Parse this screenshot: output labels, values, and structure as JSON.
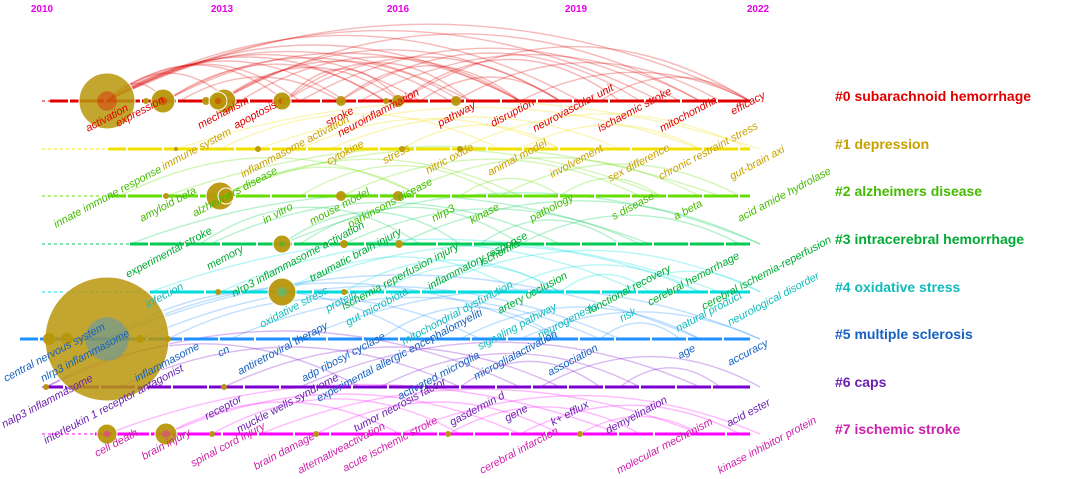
{
  "years": [
    "2010",
    "2013",
    "2016",
    "2019",
    "2022"
  ],
  "clusters": [
    {
      "label": "#0 subarachnoid hemorrhage",
      "color": "#e00000",
      "keywords": [
        "activation",
        "expression",
        "mechanism",
        "apoptosis",
        "stroke",
        "neuroinflammation",
        "pathway",
        "disruption",
        "neurovascular unit",
        "ischaemic stroke",
        "mitochondria",
        "efficacy"
      ]
    },
    {
      "label": "#1 depression",
      "color": "#c8a000",
      "keywords": [
        "immune system",
        "inflammasome activation",
        "cytokine",
        "stress",
        "nitric oxide",
        "animal model",
        "involvement",
        "sex difference",
        "chronic restraint stress",
        "gut-brain axi"
      ]
    },
    {
      "label": "#2 alzheimers disease",
      "color": "#44bb00",
      "keywords": [
        "innate immune response",
        "amyloid beta",
        "alzheimers disease",
        "in vitro",
        "mouse model",
        "parkinsons disease",
        "nlrp3",
        "kinase",
        "pathology",
        "s disease",
        "a beta",
        "acid amide hydrolase"
      ]
    },
    {
      "label": "#3 intracerebral hemorrhage",
      "color": "#00aa33",
      "keywords": [
        "experimental stroke",
        "memory",
        "nlrp3 inflammasome activation",
        "traumatic brain injury",
        "ischemia reperfusion injury",
        "inflammatory response",
        "ischemia",
        "artery occlusion",
        "functional recovery",
        "cerebral hemorrhage",
        "cerebral ischemia-reperfusion"
      ]
    },
    {
      "label": "#4 oxidative stress",
      "color": "#11bbbb",
      "keywords": [
        "infection",
        "oxidative stress",
        "protein",
        "gut microbiota",
        "mitochondrial dysfunction",
        "signaling pathway",
        "neurogenesis",
        "risk",
        "natural product",
        "neurological disorder"
      ]
    },
    {
      "label": "#5 multiple sclerosis",
      "color": "#1560c0",
      "keywords": [
        "central nervous system",
        "nlrp3 inflammasome",
        "inflammasome",
        "cn",
        "antiretroviral therapy",
        "adp ribosyl cyclase",
        "experimental allergic encephalomyeliti",
        "activated microglia",
        "microglialactivation",
        "association",
        "age",
        "accuracy"
      ]
    },
    {
      "label": "#6 caps",
      "color": "#6a20b0",
      "keywords": [
        "nalp3 inflammasome",
        "interleukin 1 receptor antagonist",
        "receptor",
        "muckle wells syndrome",
        "tumor necrosis factor",
        "gasdermin d",
        "gene",
        "k+ efflux",
        "demyelination",
        "acid ester"
      ]
    },
    {
      "label": "#7 ischemic stroke",
      "color": "#cc22aa",
      "keywords": [
        "cell death",
        "brain injury",
        "spinal cord injury",
        "brain damage",
        "alternativeactivation",
        "acute ischemic stroke",
        "cerebral infarction",
        "molecular mechanism",
        "kinase inhibitor protein"
      ]
    }
  ],
  "node_fill": "#b8960a",
  "line_colors": [
    "#e00000",
    "#f0e000",
    "#66dd00",
    "#00cc55",
    "#00dddd",
    "#1e90ff",
    "#7b00d0",
    "#ff00ff"
  ]
}
